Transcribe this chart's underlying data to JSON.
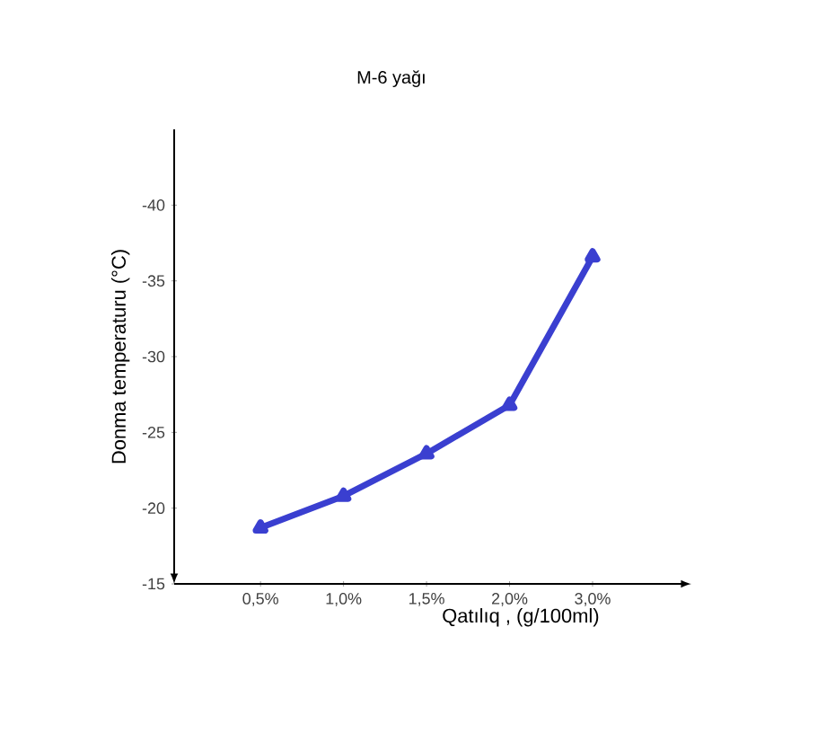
{
  "chart_data": {
    "type": "line",
    "title": "M-6 yağı",
    "xlabel": "Qatılıq , (g/100ml)",
    "ylabel": "Donma temperaturu  (°C)",
    "categories": [
      "0,5%",
      "1,0%",
      "1,5%",
      "2,0%",
      "3,0%"
    ],
    "series": [
      {
        "color": "#3a3fd0",
        "values": [
          -18.7,
          -20.8,
          -23.6,
          -26.8,
          -36.6
        ]
      }
    ],
    "ylim": [
      -15,
      -45
    ],
    "yticks": [
      -15,
      -20,
      -25,
      -30,
      -35,
      -40
    ],
    "marker": "triangle",
    "line_style": "solid"
  }
}
